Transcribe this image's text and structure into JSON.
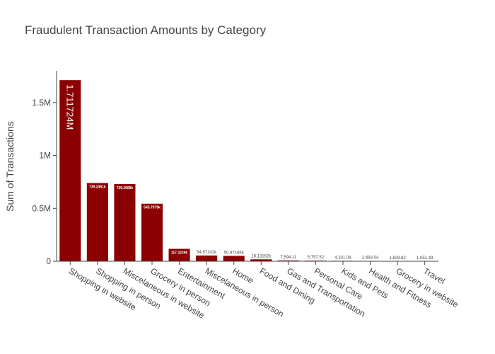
{
  "chart_data": {
    "type": "bar",
    "title": "Fraudulent Transaction Amounts by Category",
    "xlabel": "",
    "ylabel": "Sum of Transactions",
    "ylim": [
      0,
      1800000
    ],
    "yticks": [
      0,
      500000,
      1000000,
      1500000
    ],
    "ytick_labels": [
      "0",
      "0.5M",
      "1M",
      "1.5M"
    ],
    "grid": false,
    "bar_color": "#8b0000",
    "categories": [
      "Shopping in website",
      "Shopping in person",
      "Miscelaneous in website",
      "Grocery in person",
      "Entertainment",
      "Miscelaneous in person",
      "Home",
      "Food and Dining",
      "Gas and Transportation",
      "Personal Care",
      "Kids and Pets",
      "Health and Fitness",
      "Grocery in website",
      "Travel"
    ],
    "values": [
      1711724,
      739245.1,
      729266.8,
      543797.9,
      117323.9,
      54571.02,
      50971.66,
      18131.62,
      7594.11,
      5757.52,
      4331.08,
      2693.04,
      1629.82,
      1051.49
    ],
    "data_labels": [
      "1.711724M",
      "739.2451k",
      "729.2668k",
      "543.7979k",
      "117.3239k",
      "54.57102k",
      "50.97166k",
      "18.13162k",
      "7,594.11",
      "5,757.52",
      "4,331.08",
      "2,693.04",
      "1,629.82",
      "1,051.49"
    ]
  }
}
